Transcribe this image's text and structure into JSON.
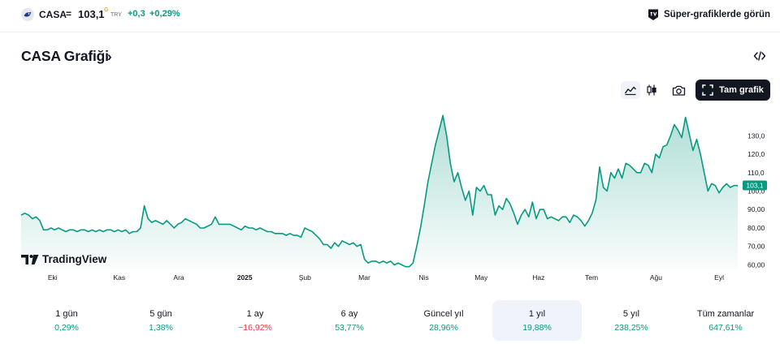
{
  "header": {
    "symbol": "CASA",
    "separator": "=",
    "price": "103,1",
    "price_flag": "G",
    "currency": "TRY",
    "change": "+0,3",
    "change_pct": "+0,29%",
    "super_charts_label": "Süper-grafiklerde görün"
  },
  "title": {
    "text": "CASA Grafiği",
    "chevron": "›"
  },
  "toolbar": {
    "icons": [
      "area-chart-icon",
      "candlestick-icon",
      "camera-icon"
    ],
    "full_chart_label": "Tam grafik"
  },
  "brand": {
    "name": "TradingView"
  },
  "colors": {
    "line": "#089981",
    "fill_top": "#089981",
    "positive": "#089981",
    "negative": "#f23645",
    "price_tag": "#089981"
  },
  "chart_data": {
    "type": "area",
    "ylim": [
      58,
      142
    ],
    "y_ticks": [
      60,
      70,
      80,
      90,
      100,
      110,
      120,
      130
    ],
    "y_tick_labels": [
      "60,00",
      "70,00",
      "80,00",
      "90,00",
      "100,0",
      "110,0",
      "120,0",
      "130,0"
    ],
    "x_labels": [
      "Eki",
      "Kas",
      "Ara",
      "2025",
      "Şub",
      "Mar",
      "Nis",
      "May",
      "Haz",
      "Tem",
      "Ağu",
      "Eyl"
    ],
    "x_label_positions": [
      0.044,
      0.137,
      0.22,
      0.312,
      0.396,
      0.479,
      0.562,
      0.642,
      0.722,
      0.796,
      0.886,
      0.974
    ],
    "last_price": 103.1,
    "last_price_label": "103,1",
    "series": [
      {
        "values": [
          87,
          88,
          87,
          85,
          86,
          84,
          79,
          79,
          80,
          79,
          80,
          79,
          78,
          79,
          79,
          78,
          79,
          79,
          78,
          79,
          78,
          79,
          78,
          79,
          79,
          78,
          79,
          78,
          79,
          77,
          78,
          78,
          80,
          92,
          85,
          83,
          84,
          83,
          82,
          84,
          82,
          80,
          82,
          83,
          85,
          84,
          83,
          82,
          80,
          80,
          81,
          82,
          86,
          82,
          82,
          82,
          82,
          81,
          80,
          79,
          81,
          80,
          80,
          79,
          80,
          79,
          78,
          78,
          77,
          77,
          77,
          76,
          77,
          76,
          76,
          75,
          80,
          79,
          78,
          76,
          74,
          71,
          71,
          69,
          72,
          70,
          73,
          72,
          71,
          72,
          70,
          71,
          63,
          61,
          62,
          62,
          61,
          62,
          61,
          62,
          60,
          61,
          60,
          59,
          59,
          61,
          70,
          80,
          92,
          105,
          115,
          125,
          133,
          141,
          130,
          115,
          105,
          110,
          102,
          95,
          100,
          87,
          102,
          100,
          103,
          98,
          98,
          87,
          92,
          90,
          96,
          93,
          88,
          82,
          87,
          90,
          86,
          94,
          85,
          90,
          90,
          85,
          86,
          85,
          84,
          86,
          86,
          83,
          87,
          86,
          84,
          81,
          84,
          88,
          95,
          113,
          102,
          100,
          110,
          107,
          112,
          107,
          115,
          114,
          112,
          110,
          110,
          115,
          114,
          110,
          120,
          118,
          124,
          125,
          130,
          136,
          133,
          129,
          140,
          131,
          122,
          128,
          120,
          110,
          100,
          104,
          103,
          99,
          102,
          104,
          102,
          103,
          103
        ]
      }
    ]
  },
  "periods": [
    {
      "label": "1 gün",
      "value": "0,29%",
      "sign": "pos"
    },
    {
      "label": "5 gün",
      "value": "1,38%",
      "sign": "pos"
    },
    {
      "label": "1 ay",
      "value": "−16,92%",
      "sign": "neg"
    },
    {
      "label": "6 ay",
      "value": "53,77%",
      "sign": "pos"
    },
    {
      "label": "Güncel yıl",
      "value": "28,96%",
      "sign": "pos"
    },
    {
      "label": "1 yıl",
      "value": "19,88%",
      "sign": "pos",
      "selected": true
    },
    {
      "label": "5 yıl",
      "value": "238,25%",
      "sign": "pos"
    },
    {
      "label": "Tüm zamanlar",
      "value": "647,61%",
      "sign": "pos"
    }
  ]
}
